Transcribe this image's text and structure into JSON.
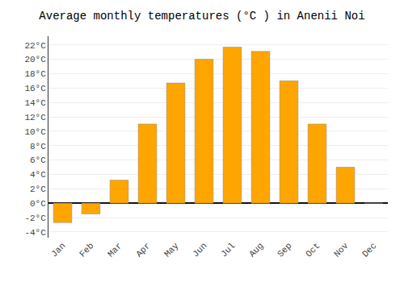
{
  "chart_data": {
    "type": "bar",
    "title": "Average monthly temperatures (°C ) in Anenii Noi",
    "categories": [
      "Jan",
      "Feb",
      "Mar",
      "Apr",
      "May",
      "Jun",
      "Jul",
      "Aug",
      "Sep",
      "Oct",
      "Nov",
      "Dec"
    ],
    "values": [
      -2.7,
      -1.5,
      3.2,
      11.0,
      16.7,
      20.0,
      21.7,
      21.1,
      17.0,
      11.0,
      5.0,
      0.0
    ],
    "color": "#FFA500",
    "ylim": [
      -4.8,
      23.2
    ],
    "yticks": [
      {
        "value": -4,
        "label": "-4°C"
      },
      {
        "value": -2,
        "label": "-2°C"
      },
      {
        "value": 0,
        "label": "0°C"
      },
      {
        "value": 2,
        "label": "2°C"
      },
      {
        "value": 4,
        "label": "4°C"
      },
      {
        "value": 6,
        "label": "6°C"
      },
      {
        "value": 8,
        "label": "8°C"
      },
      {
        "value": 10,
        "label": "10°C"
      },
      {
        "value": 12,
        "label": "12°C"
      },
      {
        "value": 14,
        "label": "14°C"
      },
      {
        "value": 16,
        "label": "16°C"
      },
      {
        "value": 18,
        "label": "18°C"
      },
      {
        "value": 20,
        "label": "20°C"
      },
      {
        "value": 22,
        "label": "22°C"
      }
    ],
    "grid": true
  }
}
